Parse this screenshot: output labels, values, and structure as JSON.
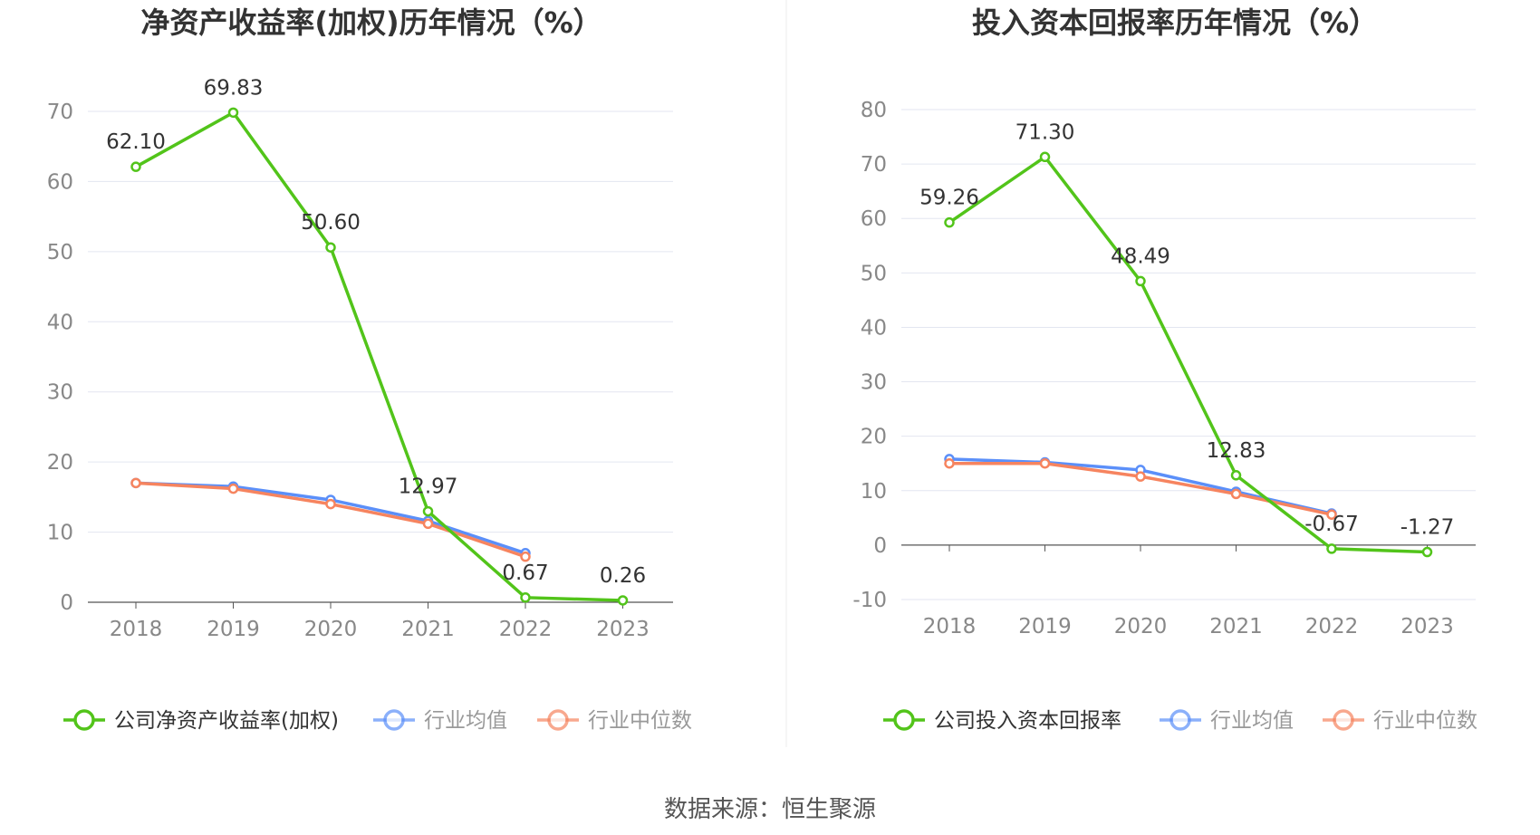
{
  "source_label": "数据来源：恒生聚源",
  "colors": {
    "company": "#52c41a",
    "avg": "#5b8ff9",
    "median": "#f6845f",
    "grid": "#e3e6f0",
    "axis": "#555555"
  },
  "chart_data": [
    {
      "type": "line",
      "title": "净资产收益率(加权)历年情况（%）",
      "categories": [
        "2018",
        "2019",
        "2020",
        "2021",
        "2022",
        "2023"
      ],
      "ylim": [
        0,
        70
      ],
      "yticks": [
        0,
        10,
        20,
        30,
        40,
        50,
        60,
        70
      ],
      "grid": true,
      "legend_position": "bottom",
      "series": [
        {
          "name": "公司净资产收益率(加权)",
          "color": "#52c41a",
          "values": [
            62.1,
            69.83,
            50.6,
            12.97,
            0.67,
            0.26
          ],
          "labels": [
            "62.10",
            "69.83",
            "50.60",
            "12.97",
            "0.67",
            "0.26"
          ]
        },
        {
          "name": "行业均值",
          "color": "#5b8ff9",
          "values": [
            17.0,
            16.5,
            14.6,
            11.6,
            7.0,
            null
          ]
        },
        {
          "name": "行业中位数",
          "color": "#f6845f",
          "values": [
            17.0,
            16.2,
            14.0,
            11.2,
            6.5,
            null
          ]
        }
      ]
    },
    {
      "type": "line",
      "title": "投入资本回报率历年情况（%）",
      "categories": [
        "2018",
        "2019",
        "2020",
        "2021",
        "2022",
        "2023"
      ],
      "ylim": [
        -10,
        80
      ],
      "yticks": [
        -10,
        0,
        10,
        20,
        30,
        40,
        50,
        60,
        70,
        80
      ],
      "grid": true,
      "legend_position": "bottom",
      "series": [
        {
          "name": "公司投入资本回报率",
          "color": "#52c41a",
          "values": [
            59.26,
            71.3,
            48.49,
            12.83,
            -0.67,
            -1.27
          ],
          "labels": [
            "59.26",
            "71.30",
            "48.49",
            "12.83",
            "-0.67",
            "-1.27"
          ]
        },
        {
          "name": "行业均值",
          "color": "#5b8ff9",
          "values": [
            15.8,
            15.2,
            13.8,
            9.8,
            5.8,
            null
          ]
        },
        {
          "name": "行业中位数",
          "color": "#f6845f",
          "values": [
            15.0,
            15.0,
            12.6,
            9.4,
            5.6,
            null
          ]
        }
      ]
    }
  ]
}
